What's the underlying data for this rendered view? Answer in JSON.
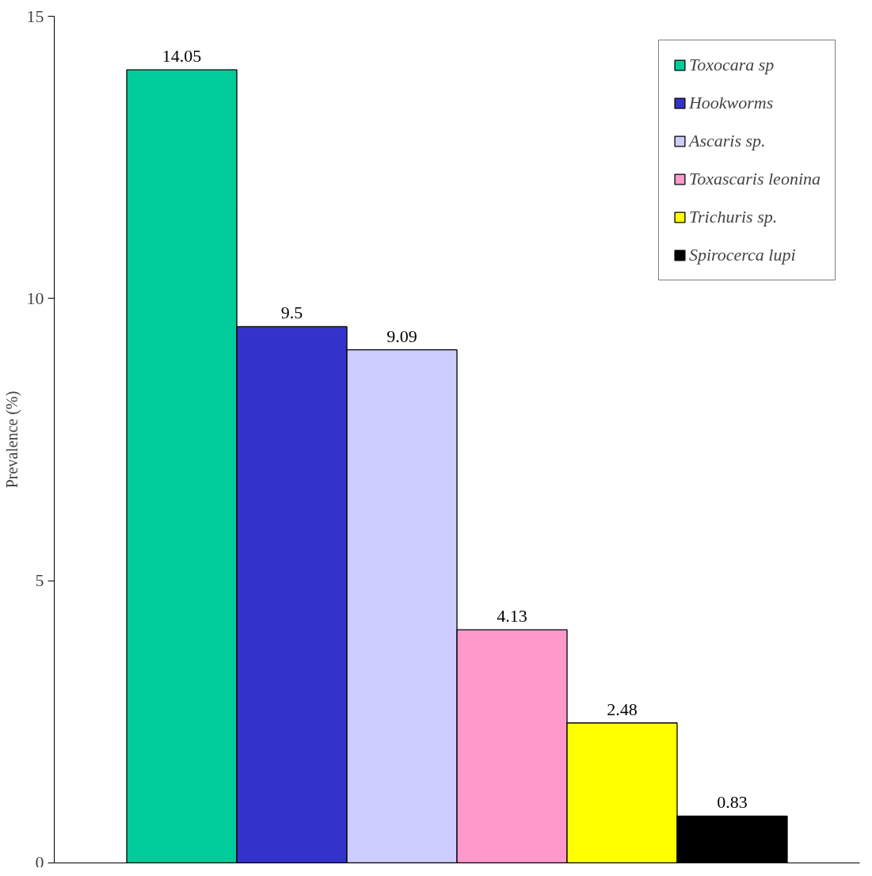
{
  "chart_data": {
    "type": "bar",
    "ylabel": "Prevalence (%)",
    "categories": [
      null
    ],
    "series": [
      {
        "name": "Toxocara sp",
        "color": "#00cc99",
        "values": [
          14.05
        ]
      },
      {
        "name": "Hookworms",
        "color": "#3333cc",
        "values": [
          9.5
        ]
      },
      {
        "name": "Ascaris sp.",
        "color": "#ccccff",
        "values": [
          9.09
        ]
      },
      {
        "name": "Toxascaris leonina",
        "color": "#ff99cc",
        "values": [
          4.13
        ]
      },
      {
        "name": "Trichuris sp.",
        "color": "#ffff00",
        "values": [
          2.48
        ]
      },
      {
        "name": "Spirocerca lupi",
        "color": "#000000",
        "values": [
          0.83
        ]
      }
    ],
    "ylim": [
      0,
      15
    ],
    "yticks": [
      0,
      5,
      10,
      15
    ],
    "grid": false,
    "legend": "top right",
    "data_labels": true
  }
}
